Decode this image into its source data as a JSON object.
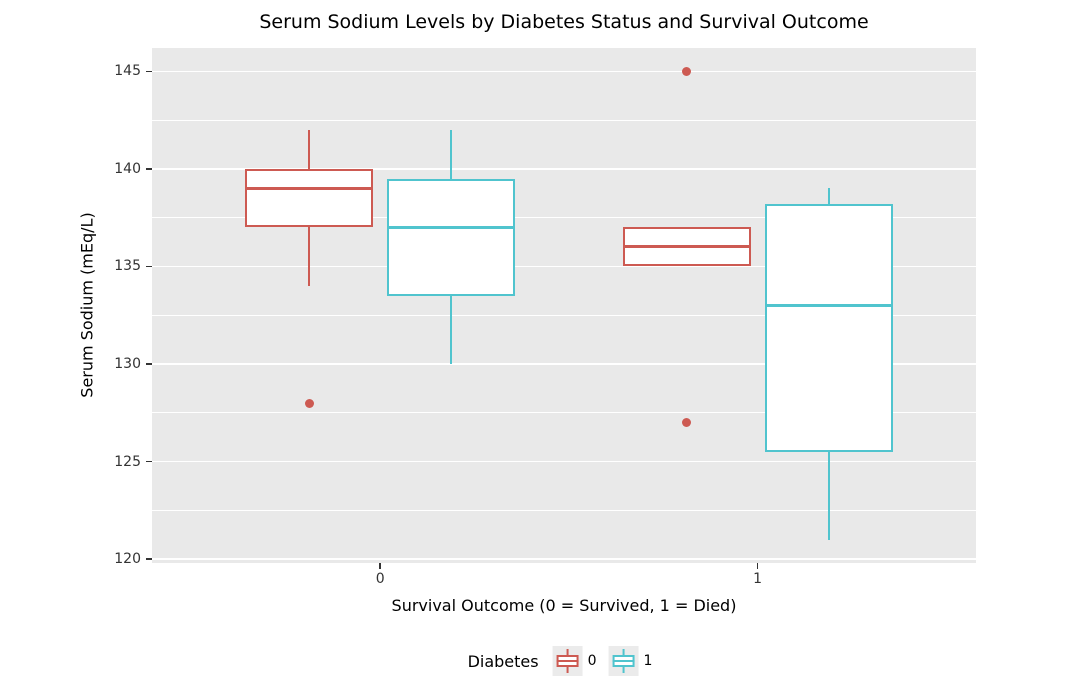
{
  "chart_data": {
    "type": "boxplot",
    "title": "Serum Sodium Levels by Diabetes Status and Survival Outcome",
    "xlabel": "Survival Outcome (0 = Survived, 1 = Died)",
    "ylabel": "Serum Sodium (mEq/L)",
    "x_categories": [
      "0",
      "1"
    ],
    "y_axis": {
      "tick_values": [
        145,
        140,
        135,
        130,
        125,
        120
      ],
      "minor_gridlines": [
        142.5,
        137.5,
        132.5,
        127.5,
        122.5
      ],
      "range": [
        119.8,
        146.2
      ]
    },
    "grid": "on",
    "legend": {
      "title": "Diabetes",
      "position": "bottom",
      "entries": [
        {
          "label": "0",
          "color": "#CD5A52"
        },
        {
          "label": "1",
          "color": "#50C4CE"
        }
      ]
    },
    "series": [
      {
        "name": "Diabetes 0",
        "color": "#CD5A52",
        "boxes": [
          {
            "category": "0",
            "whisker_low": 134,
            "q1": 137,
            "median": 139,
            "q3": 140,
            "whisker_high": 142,
            "outliers": [
              128
            ]
          },
          {
            "category": "1",
            "whisker_low": 135,
            "q1": 135,
            "median": 136,
            "q3": 137,
            "whisker_high": 137,
            "outliers": [
              145,
              127
            ]
          }
        ]
      },
      {
        "name": "Diabetes 1",
        "color": "#50C4CE",
        "boxes": [
          {
            "category": "0",
            "whisker_low": 130,
            "q1": 133.5,
            "median": 137,
            "q3": 139.5,
            "whisker_high": 142,
            "outliers": []
          },
          {
            "category": "1",
            "whisker_low": 121,
            "q1": 125.5,
            "median": 133,
            "q3": 138.2,
            "whisker_high": 139,
            "outliers": []
          }
        ]
      }
    ],
    "colors": {
      "panel_background": "#E9E9E9",
      "gridline": "#FFFFFF",
      "tick_text": "#333333",
      "title_text": "#000000",
      "legend_key_background": "#EBEBEB"
    }
  }
}
